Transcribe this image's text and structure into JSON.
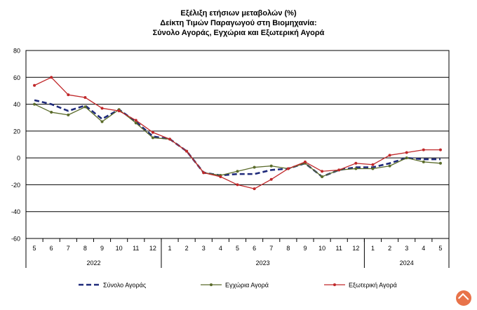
{
  "chart_data": {
    "type": "line",
    "title": "Εξέλιξη ετήσιων μεταβολών (%)",
    "subtitle_1": "Δείκτη Τιμών Παραγωγού στη Βιομηχανία:",
    "subtitle_2": "Σύνολο Αγοράς, Εγχώρια και Εξωτερική Αγορά",
    "categories": [
      "5",
      "6",
      "7",
      "8",
      "9",
      "10",
      "11",
      "12",
      "1",
      "2",
      "3",
      "4",
      "5",
      "6",
      "7",
      "8",
      "9",
      "10",
      "11",
      "12",
      "1",
      "2",
      "3",
      "4",
      "5"
    ],
    "year_groups": [
      {
        "label": "2022",
        "start": 0,
        "count": 8
      },
      {
        "label": "2023",
        "start": 8,
        "count": 12
      },
      {
        "label": "2024",
        "start": 20,
        "count": 5
      }
    ],
    "ylim": [
      -60,
      80
    ],
    "yticks": [
      80,
      60,
      40,
      20,
      0,
      -20,
      -40,
      -60
    ],
    "grid": true,
    "legend_position": "bottom",
    "series": [
      {
        "name": "Σύνολο Αγοράς",
        "color": "#1f2a7a",
        "style": "dashed",
        "values": [
          43,
          40,
          35,
          39,
          29,
          36,
          27,
          16,
          14,
          5,
          -11,
          -13,
          -12,
          -12,
          -9,
          -8,
          -4,
          -14,
          -9,
          -7,
          -7,
          -4,
          0,
          -1,
          -1
        ]
      },
      {
        "name": "Εγχώρια Αγορά",
        "color": "#5a6b2a",
        "style": "solid",
        "values": [
          40,
          34,
          32,
          38,
          27,
          36,
          26,
          15,
          14,
          5,
          -11,
          -13,
          -10,
          -7,
          -6,
          -8,
          -4,
          -14,
          -9,
          -8,
          -8,
          -6,
          0,
          -3,
          -4
        ]
      },
      {
        "name": "Εξωτερική Αγορά",
        "color": "#c0282a",
        "style": "solid",
        "values": [
          54,
          60,
          47,
          45,
          37,
          35,
          28,
          19,
          14,
          5,
          -11,
          -14,
          -20,
          -23,
          -16,
          -8,
          -3,
          -10,
          -9,
          -4,
          -5,
          2,
          4,
          6,
          6
        ]
      }
    ]
  }
}
